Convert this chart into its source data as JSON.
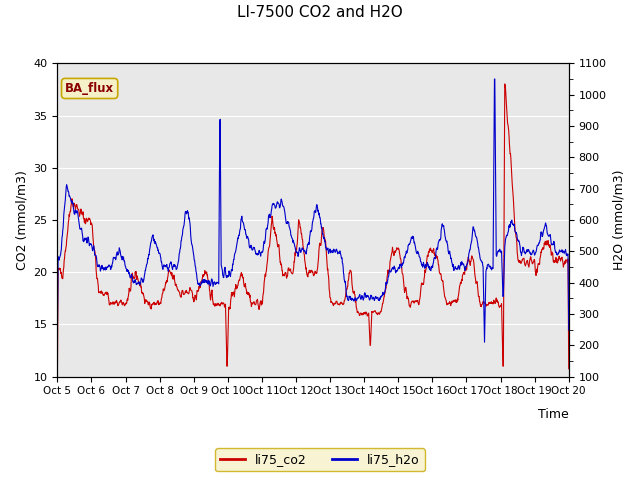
{
  "title": "LI-7500 CO2 and H2O",
  "xlabel": "Time",
  "ylabel_left": "CO2 (mmol/m3)",
  "ylabel_right": "H2O (mmol/m3)",
  "ylim_left": [
    10,
    40
  ],
  "ylim_right": [
    100,
    1100
  ],
  "yticks_left": [
    10,
    15,
    20,
    25,
    30,
    35,
    40
  ],
  "yticks_right": [
    100,
    200,
    300,
    400,
    500,
    600,
    700,
    800,
    900,
    1000,
    1100
  ],
  "xtick_labels": [
    "Oct 5",
    "Oct 6",
    "Oct 7",
    "Oct 8",
    "Oct 9",
    "Oct 10",
    "Oct 11",
    "Oct 12",
    "Oct 13",
    "Oct 14",
    "Oct 15",
    "Oct 16",
    "Oct 17",
    "Oct 18",
    "Oct 19",
    "Oct 20"
  ],
  "bg_color": "#e8e8e8",
  "plot_bg_light": "#f0f0f0",
  "legend_box_color": "#f5f0c8",
  "legend_box_edge": "#c8a800",
  "ba_flux_box_color": "#f5f0c8",
  "ba_flux_box_edge": "#c8a800",
  "ba_flux_text_color": "#8b0000",
  "color_co2": "#cc0000",
  "color_h2o": "#0000cc",
  "linewidth": 0.8
}
